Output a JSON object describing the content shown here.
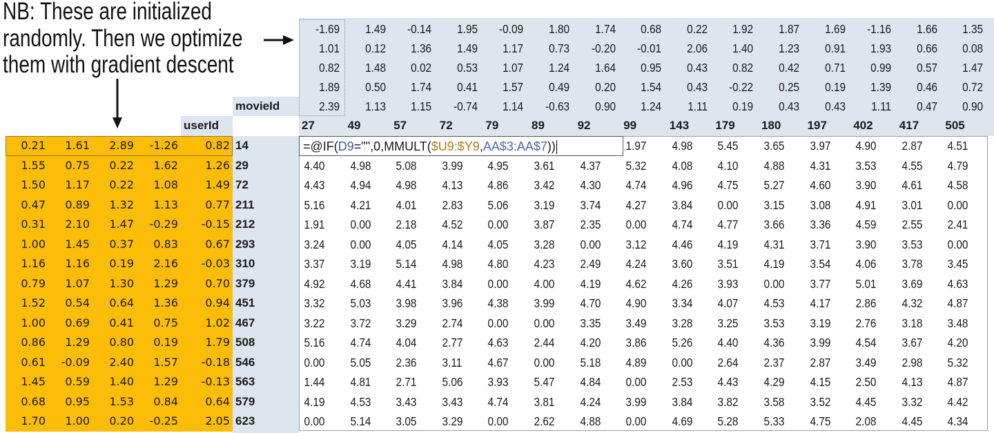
{
  "annotation": {
    "lines": [
      "NB: These are initialized",
      "randomly. Then we optimize",
      "them with gradient descent"
    ]
  },
  "labels": {
    "movie_id": "movieId",
    "user_id": "userId"
  },
  "colors": {
    "user_factor_fill": "#fbbd08",
    "header_fill": "#dde5ef",
    "formula_ref1": "#3b5fa0",
    "formula_ref2": "#b07a1d"
  },
  "movie_ids": [
    "27",
    "49",
    "57",
    "72",
    "79",
    "89",
    "92",
    "99",
    "143",
    "179",
    "180",
    "197",
    "402",
    "417",
    "505"
  ],
  "movie_factors": [
    [
      "-1.69",
      "1.49",
      "-0.14",
      "1.95",
      "-0.09",
      "1.80",
      "1.74",
      "0.68",
      "0.22",
      "1.92",
      "1.87",
      "1.69",
      "-1.16",
      "1.66",
      "1.35"
    ],
    [
      "1.01",
      "0.12",
      "1.36",
      "1.49",
      "1.17",
      "0.73",
      "-0.20",
      "-0.01",
      "2.06",
      "1.40",
      "1.23",
      "0.91",
      "1.93",
      "0.66",
      "0.08"
    ],
    [
      "0.82",
      "1.48",
      "0.02",
      "0.53",
      "1.07",
      "1.24",
      "1.64",
      "0.95",
      "0.43",
      "0.82",
      "0.42",
      "0.71",
      "0.99",
      "0.57",
      "1.47"
    ],
    [
      "1.89",
      "0.50",
      "1.74",
      "0.41",
      "1.57",
      "0.49",
      "0.20",
      "1.54",
      "0.43",
      "-0.22",
      "0.25",
      "0.19",
      "1.39",
      "0.46",
      "0.72"
    ],
    [
      "2.39",
      "1.13",
      "1.15",
      "-0.74",
      "1.14",
      "-0.63",
      "0.90",
      "1.24",
      "1.11",
      "0.19",
      "0.43",
      "0.43",
      "1.11",
      "0.47",
      "0.90"
    ]
  ],
  "user_ids": [
    "14",
    "29",
    "72",
    "211",
    "212",
    "293",
    "310",
    "379",
    "451",
    "467",
    "508",
    "546",
    "563",
    "579",
    "623"
  ],
  "user_factors": [
    [
      "0.21",
      "1.61",
      "2.89",
      "-1.26",
      "0.82"
    ],
    [
      "1.55",
      "0.75",
      "0.22",
      "1.62",
      "1.26"
    ],
    [
      "1.50",
      "1.17",
      "0.22",
      "1.08",
      "1.49"
    ],
    [
      "0.47",
      "0.89",
      "1.32",
      "1.13",
      "0.77"
    ],
    [
      "0.31",
      "2.10",
      "1.47",
      "-0.29",
      "-0.15"
    ],
    [
      "1.00",
      "1.45",
      "0.37",
      "0.83",
      "0.67"
    ],
    [
      "1.16",
      "1.16",
      "0.19",
      "2.16",
      "-0.03"
    ],
    [
      "0.79",
      "1.07",
      "1.30",
      "1.29",
      "0.70"
    ],
    [
      "1.52",
      "0.54",
      "0.64",
      "1.36",
      "0.94"
    ],
    [
      "1.00",
      "0.69",
      "0.41",
      "0.75",
      "1.02"
    ],
    [
      "0.86",
      "1.29",
      "0.80",
      "0.19",
      "1.79"
    ],
    [
      "0.61",
      "-0.09",
      "2.40",
      "1.57",
      "-0.18"
    ],
    [
      "1.45",
      "0.59",
      "1.40",
      "1.29",
      "-0.13"
    ],
    [
      "0.68",
      "0.95",
      "1.53",
      "0.84",
      "0.64"
    ],
    [
      "1.70",
      "1.00",
      "0.20",
      "-0.25",
      "2.05"
    ]
  ],
  "formula": {
    "prefix": "=@IF(",
    "ref1": "D9",
    "mid": "=\"\",0,MMULT(",
    "ref2": "$U9:$Y9",
    "comma": ",",
    "ref3": "AA$3:AA$7",
    "suffix": "))"
  },
  "predictions": [
    [
      "",
      "",
      "",
      "",
      "",
      "",
      "",
      "1.97",
      "4.98",
      "5.45",
      "3.65",
      "3.97",
      "4.90",
      "2.87",
      "4.51"
    ],
    [
      "4.40",
      "4.98",
      "5.08",
      "3.99",
      "4.95",
      "3.61",
      "4.37",
      "5.32",
      "4.08",
      "4.10",
      "4.88",
      "4.31",
      "3.53",
      "4.55",
      "4.79"
    ],
    [
      "4.43",
      "4.94",
      "4.98",
      "4.13",
      "4.86",
      "3.42",
      "4.30",
      "4.74",
      "4.96",
      "4.75",
      "5.27",
      "4.60",
      "3.90",
      "4.61",
      "4.58"
    ],
    [
      "5.16",
      "4.21",
      "4.01",
      "2.83",
      "5.06",
      "3.19",
      "3.74",
      "4.27",
      "3.84",
      "0.00",
      "3.15",
      "3.08",
      "4.91",
      "3.01",
      "0.00"
    ],
    [
      "1.91",
      "0.00",
      "2.18",
      "4.52",
      "0.00",
      "3.87",
      "2.35",
      "0.00",
      "4.74",
      "4.77",
      "3.66",
      "3.36",
      "4.59",
      "2.55",
      "2.41"
    ],
    [
      "3.24",
      "0.00",
      "4.05",
      "4.14",
      "4.05",
      "3.28",
      "0.00",
      "3.12",
      "4.46",
      "4.19",
      "4.31",
      "3.71",
      "3.90",
      "3.53",
      "0.00"
    ],
    [
      "3.37",
      "3.19",
      "5.14",
      "4.98",
      "4.80",
      "4.23",
      "2.49",
      "4.24",
      "3.60",
      "3.51",
      "4.19",
      "3.54",
      "4.06",
      "3.78",
      "3.45"
    ],
    [
      "4.92",
      "4.68",
      "4.41",
      "3.84",
      "0.00",
      "4.00",
      "4.19",
      "4.62",
      "4.26",
      "3.93",
      "0.00",
      "3.77",
      "5.01",
      "3.69",
      "4.63"
    ],
    [
      "3.32",
      "5.03",
      "3.98",
      "3.96",
      "4.38",
      "3.99",
      "4.70",
      "4.90",
      "3.34",
      "4.07",
      "4.53",
      "4.17",
      "2.86",
      "4.32",
      "4.87"
    ],
    [
      "3.22",
      "3.72",
      "3.29",
      "2.74",
      "0.00",
      "0.00",
      "3.35",
      "3.49",
      "3.28",
      "3.25",
      "3.53",
      "3.19",
      "2.76",
      "3.18",
      "3.48"
    ],
    [
      "5.16",
      "4.74",
      "4.04",
      "2.77",
      "4.63",
      "2.44",
      "4.20",
      "3.86",
      "5.26",
      "4.40",
      "4.36",
      "3.99",
      "4.54",
      "3.67",
      "4.20"
    ],
    [
      "0.00",
      "5.05",
      "2.36",
      "3.11",
      "4.67",
      "0.00",
      "5.18",
      "4.89",
      "0.00",
      "2.64",
      "2.37",
      "2.87",
      "3.49",
      "2.98",
      "5.32"
    ],
    [
      "1.44",
      "4.81",
      "2.71",
      "5.06",
      "3.93",
      "5.47",
      "4.84",
      "0.00",
      "2.53",
      "4.43",
      "4.29",
      "4.15",
      "2.50",
      "4.13",
      "4.87"
    ],
    [
      "4.19",
      "4.53",
      "3.43",
      "3.43",
      "4.74",
      "3.81",
      "4.24",
      "3.99",
      "3.84",
      "3.82",
      "3.58",
      "3.52",
      "4.45",
      "3.32",
      "4.42"
    ],
    [
      "0.00",
      "5.14",
      "3.05",
      "3.29",
      "0.00",
      "2.62",
      "4.88",
      "0.00",
      "4.69",
      "5.28",
      "5.33",
      "4.75",
      "2.08",
      "4.45",
      "4.34"
    ]
  ]
}
